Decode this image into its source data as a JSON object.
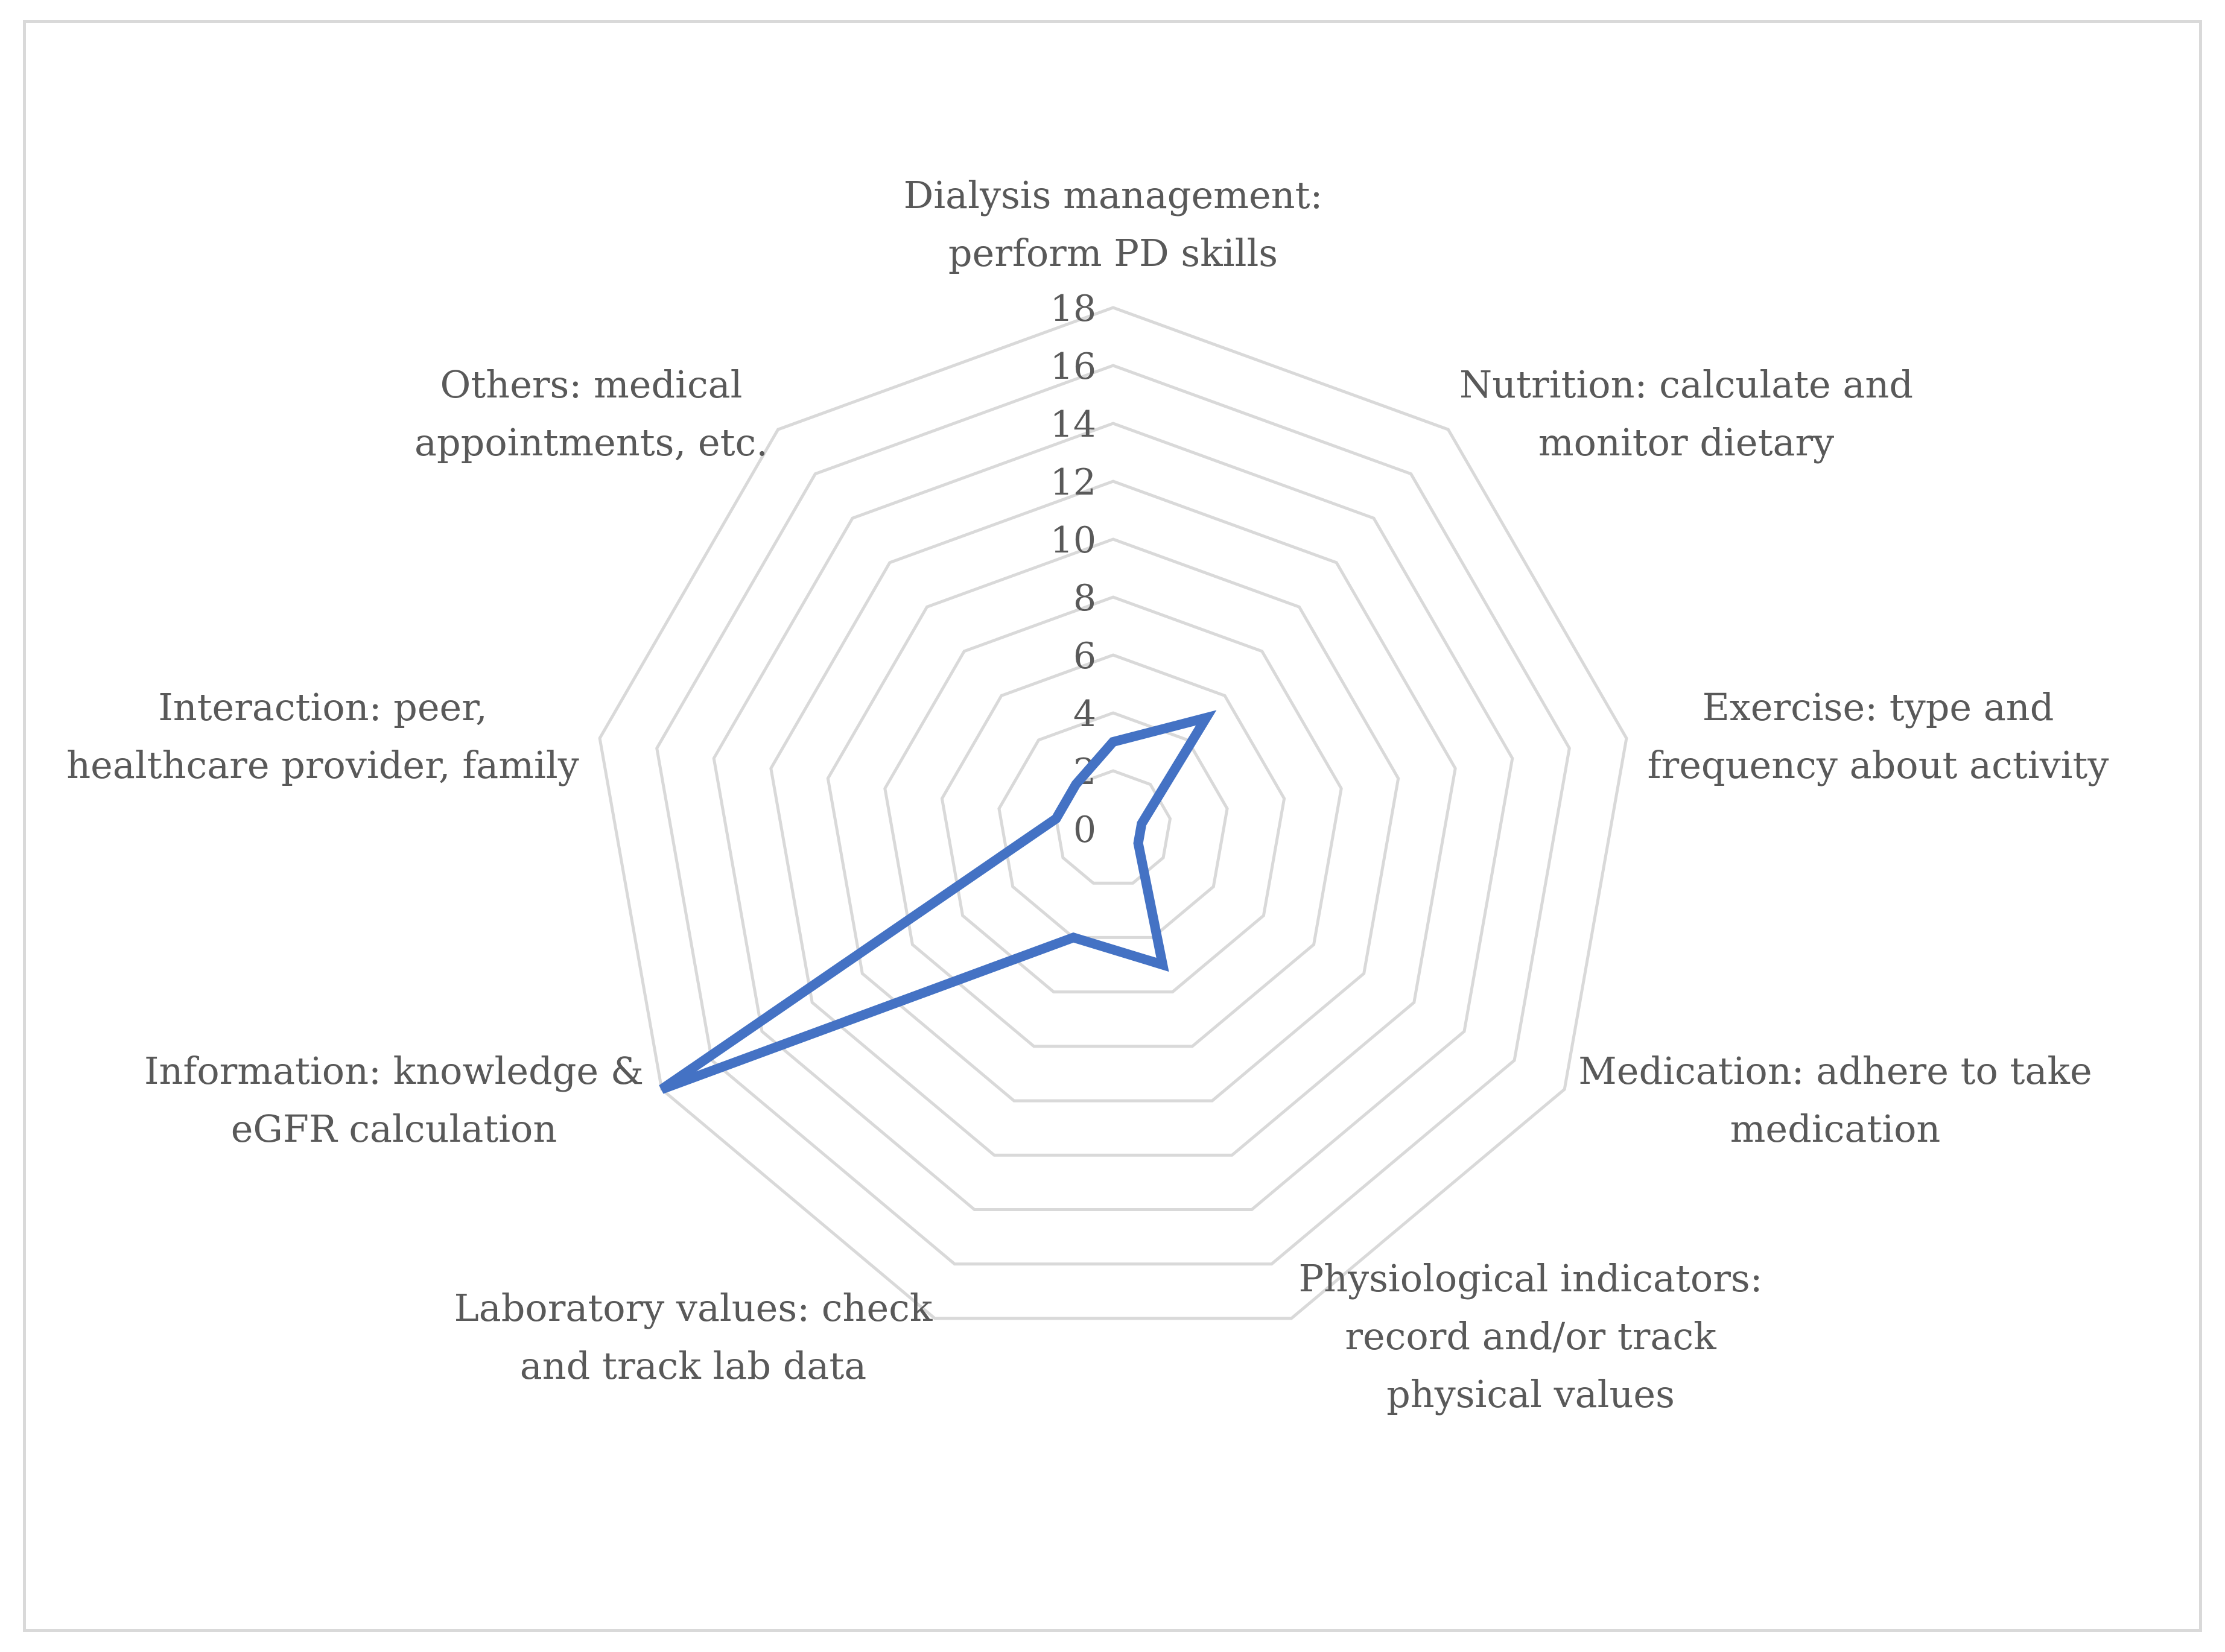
{
  "chart_data": {
    "type": "radar",
    "categories": [
      [
        "Dialysis management:",
        "perform PD skills"
      ],
      [
        "Nutrition: calculate and",
        "monitor dietary"
      ],
      [
        "Exercise: type and",
        "frequency about activity"
      ],
      [
        "Medication: adhere to take",
        "medication"
      ],
      [
        "Physiological indicators:",
        "record and/or track",
        "physical values"
      ],
      [
        "Laboratory values: check",
        "and track lab data"
      ],
      [
        "Information: knowledge &",
        "eGFR calculation"
      ],
      [
        "Interaction: peer,",
        "healthcare provider, family"
      ],
      [
        "Others: medical",
        "appointments, etc."
      ]
    ],
    "series": [
      {
        "values": [
          3,
          5,
          1,
          1,
          5,
          4,
          18,
          2,
          2
        ],
        "color": "#4472c4"
      }
    ],
    "ticks": [
      "0",
      "2",
      "4",
      "6",
      "8",
      "10",
      "12",
      "14",
      "16",
      "18"
    ],
    "rlim": [
      0,
      18
    ],
    "grid": true,
    "legend": "none",
    "grid_color": "#d9d9d9",
    "text_color": "#595959"
  }
}
